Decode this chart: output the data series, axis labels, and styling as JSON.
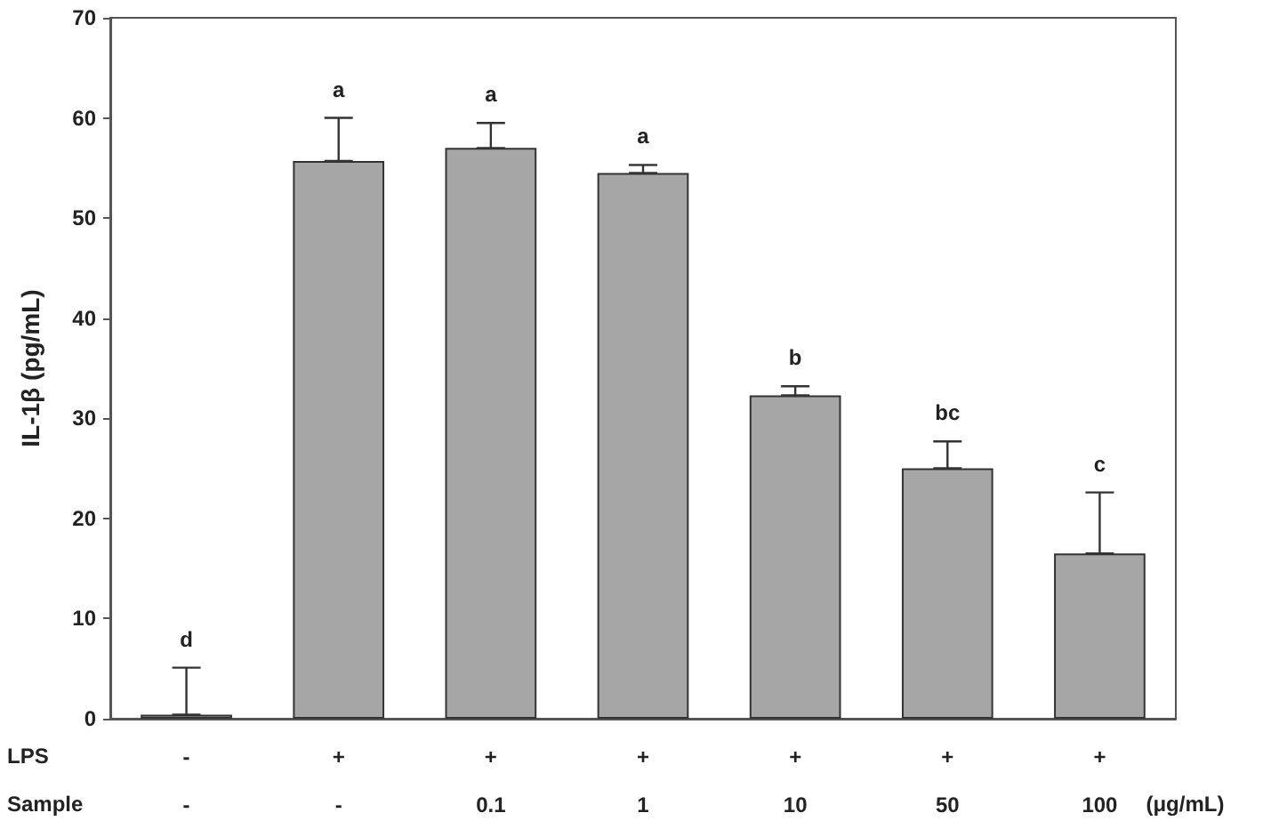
{
  "chart_data": {
    "type": "bar",
    "ylabel": "IL-1β (pg/mL)",
    "categories": [
      "-\n-",
      "+\n-",
      "+\n0.1",
      "+\n1",
      "+\n10",
      "+\n50",
      "+\n100"
    ],
    "values": [
      0.4,
      55.7,
      57,
      54.5,
      32.3,
      25,
      16.5
    ],
    "errors": [
      [
        0.4,
        5.1
      ],
      [
        55.7,
        60
      ],
      [
        57,
        59.5
      ],
      [
        54.5,
        55.3
      ],
      [
        32.3,
        33.2
      ],
      [
        25,
        27.7
      ],
      [
        16.5,
        22.6
      ]
    ],
    "color": "#a6a6a6",
    "ylim": [
      0,
      70
    ],
    "yticks": [
      0,
      10,
      20,
      30,
      40,
      50,
      60,
      70
    ],
    "grid": false,
    "annotations": [
      {
        "text": "d",
        "x": "-\n-",
        "y": 5.1
      },
      {
        "text": "a",
        "x": "+\n-",
        "y": 60
      },
      {
        "text": "a",
        "x": "+\n0.1",
        "y": 59.5
      },
      {
        "text": "a",
        "x": "+\n1",
        "y": 55.3
      },
      {
        "text": "b",
        "x": "+\n10",
        "y": 33.2
      },
      {
        "text": "bc",
        "x": "+\n50",
        "y": 27.7
      },
      {
        "text": "c",
        "x": "+\n100",
        "y": 22.6
      },
      "LPS",
      "Sample",
      "(μg/mL)"
    ]
  }
}
